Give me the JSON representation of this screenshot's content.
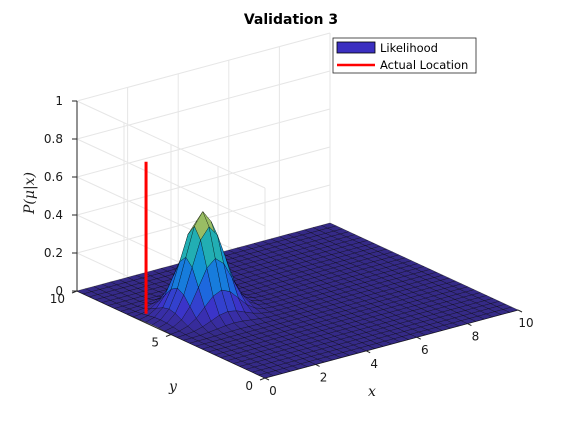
{
  "chart_data": {
    "type": "surface",
    "title": "Validation 3",
    "xlabel": "x",
    "ylabel": "y",
    "zlabel": "P(μ|x)",
    "xlim": [
      0,
      10
    ],
    "ylim": [
      0,
      10
    ],
    "zlim": [
      0,
      1
    ],
    "xticks": [
      "0",
      "2",
      "4",
      "6",
      "8",
      "10"
    ],
    "yticks": [
      "0",
      "5",
      "10"
    ],
    "zticks": [
      "0",
      "0.2",
      "0.4",
      "0.6",
      "0.8",
      "1"
    ],
    "grid": true,
    "legend_position": "top-right",
    "series": [
      {
        "name": "Likelihood",
        "kind": "surface",
        "peak": {
          "x": 2,
          "y": 6,
          "z": 0.53
        },
        "spread": 0.65,
        "color": "#3b2fc0"
      },
      {
        "name": "Actual Location",
        "kind": "line",
        "x": 0.5,
        "y": 7,
        "z": [
          0,
          0.8
        ],
        "color": "#ff0000"
      }
    ]
  }
}
